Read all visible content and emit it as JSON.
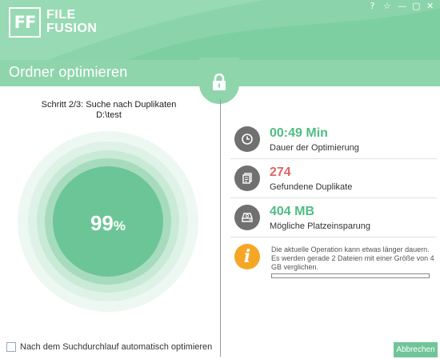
{
  "header": {
    "logo_mark": "FF",
    "logo_line1": "FILE",
    "logo_line2": "FUSION",
    "controls": {
      "help": "?",
      "favorite": "☆",
      "minimize": "—",
      "maximize": "▢",
      "close": "✕"
    }
  },
  "page_title": "Ordner optimieren",
  "scan": {
    "step": "Schritt 2/3: Suche nach Duplikaten",
    "path": "D:\\test",
    "percent_value": "99",
    "percent_sign": "%"
  },
  "stats": [
    {
      "value": "00:49 Min",
      "label": "Dauer der Optimierung",
      "icon": "clock-icon"
    },
    {
      "value": "274",
      "label": "Gefundene Duplikate",
      "icon": "duplicate-files-icon"
    },
    {
      "value": "404 MB",
      "label": "Mögliche Platzeinsparung",
      "icon": "hard-drive-icon"
    }
  ],
  "info": {
    "text": "Die aktuelle Operation kann etwas länger dauern. Es werden gerade 2 Dateien mit einer Größe von 4 GB verglichen.",
    "progress_fraction": 0.0
  },
  "auto_optimize_label": "Nach dem Suchdurchlauf automatisch optimieren",
  "cancel_label": "Abbrechen",
  "colors": {
    "accent": "#7dcfa1",
    "value_green": "#4fbe84",
    "value_red": "#e06565",
    "info_orange": "#f5a623"
  }
}
